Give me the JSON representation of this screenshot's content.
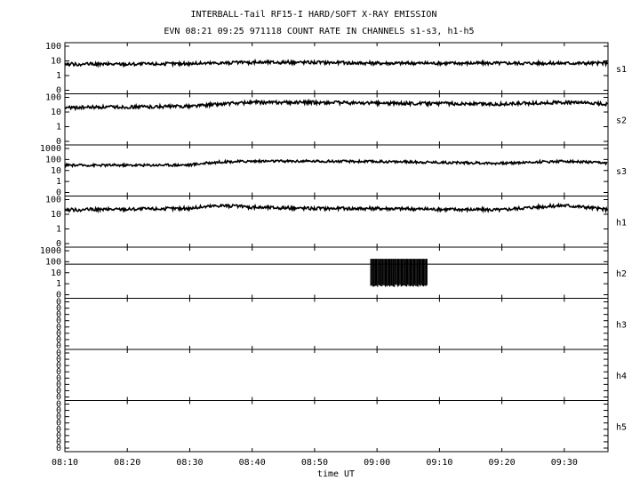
{
  "chart_data": {
    "type": "line",
    "title": "INTERBALL-Tail RF15-I HARD/SOFT X-RAY EMISSION",
    "subtitle": "EVN 08:21 09:25 971118  COUNT RATE IN CHANNELS s1-s3, h1-h5",
    "xlabel": "time UT",
    "x_ticks": [
      "08:10",
      "08:20",
      "08:30",
      "08:40",
      "08:50",
      "09:00",
      "09:10",
      "09:20",
      "09:30"
    ],
    "xlim": [
      "08:10",
      "09:37"
    ],
    "y_scale": "log",
    "grid": false,
    "panels": [
      {
        "name": "s1",
        "ticks": [
          "100",
          "10",
          "1",
          "0"
        ]
      },
      {
        "name": "s2",
        "ticks": [
          "100",
          "10",
          "1",
          "0"
        ]
      },
      {
        "name": "s3",
        "ticks": [
          "1000",
          "100",
          "10",
          "1",
          "0"
        ]
      },
      {
        "name": "h1",
        "ticks": [
          "100",
          "10",
          "1",
          "0"
        ]
      },
      {
        "name": "h2",
        "ticks": [
          "1000",
          "100",
          "10",
          "1",
          "0"
        ]
      },
      {
        "name": "h3",
        "ticks": [
          "0",
          "0",
          "0",
          "0",
          "0",
          "0",
          "0",
          "0"
        ]
      },
      {
        "name": "h4",
        "ticks": [
          "0",
          "0",
          "0",
          "0",
          "0",
          "0",
          "0",
          "0"
        ]
      },
      {
        "name": "h5",
        "ticks": [
          "0",
          "0",
          "0",
          "0",
          "0",
          "0",
          "0",
          "0"
        ]
      }
    ],
    "series": [
      {
        "name": "s1",
        "x": [
          "08:10",
          "08:20",
          "08:30",
          "08:40",
          "08:50",
          "09:00",
          "09:10",
          "09:20",
          "09:30",
          "09:37"
        ],
        "y": [
          6,
          6,
          6.5,
          8,
          8,
          7,
          7,
          7,
          7,
          7
        ]
      },
      {
        "name": "s2",
        "x": [
          "08:10",
          "08:20",
          "08:30",
          "08:35",
          "08:40",
          "08:50",
          "09:00",
          "09:10",
          "09:20",
          "09:30",
          "09:37"
        ],
        "y": [
          20,
          22,
          25,
          35,
          45,
          45,
          40,
          38,
          35,
          45,
          35
        ]
      },
      {
        "name": "s3",
        "x": [
          "08:10",
          "08:20",
          "08:30",
          "08:35",
          "08:40",
          "08:50",
          "09:00",
          "09:10",
          "09:20",
          "09:30",
          "09:37"
        ],
        "y": [
          30,
          30,
          32,
          60,
          70,
          70,
          65,
          55,
          45,
          70,
          45
        ]
      },
      {
        "name": "h1",
        "x": [
          "08:10",
          "08:20",
          "08:30",
          "08:35",
          "08:40",
          "08:50",
          "09:00",
          "09:10",
          "09:20",
          "09:30",
          "09:37"
        ],
        "y": [
          20,
          22,
          25,
          40,
          30,
          25,
          25,
          22,
          20,
          40,
          20
        ]
      },
      {
        "name": "h2",
        "x": [
          "08:10",
          "08:58",
          "09:08",
          "09:37"
        ],
        "y": [
          0,
          0,
          60,
          0
        ]
      }
    ]
  }
}
